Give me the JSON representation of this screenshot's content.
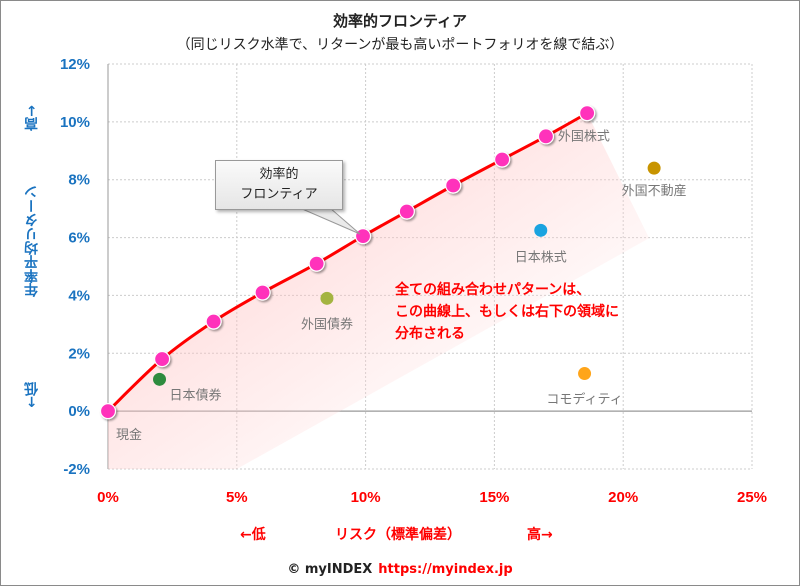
{
  "title": "効率的フロンティア",
  "subtitle": "（同じリスク水準で、リターンが最も高いポートフォリオを線で結ぶ）",
  "chart_data": {
    "type": "scatter",
    "title": "効率的フロンティア",
    "xlabel": "リスク（標準偏差）",
    "ylabel": "年率平均リターン",
    "xlim": [
      0,
      25
    ],
    "ylim": [
      -2,
      12
    ],
    "x_ticks": [
      "0%",
      "5%",
      "10%",
      "15%",
      "20%",
      "25%"
    ],
    "y_ticks": [
      "-2%",
      "0%",
      "2%",
      "4%",
      "6%",
      "8%",
      "10%",
      "12%"
    ],
    "grid": true,
    "frontier": {
      "name": "効率的フロンティア",
      "color": "#ff0000",
      "marker_color": "#ff33bb",
      "x": [
        0,
        2.1,
        4.1,
        6.0,
        8.1,
        9.9,
        11.6,
        13.4,
        15.3,
        17.0,
        18.6
      ],
      "y": [
        0,
        1.8,
        3.1,
        4.1,
        5.1,
        6.05,
        6.9,
        7.8,
        8.7,
        9.5,
        10.3
      ]
    },
    "assets": [
      {
        "name": "現金",
        "x": 0,
        "y": 0,
        "color": "#ff33bb"
      },
      {
        "name": "日本債券",
        "x": 2.0,
        "y": 1.1,
        "color": "#2e8b3e"
      },
      {
        "name": "外国債券",
        "x": 8.5,
        "y": 3.9,
        "color": "#a4b441"
      },
      {
        "name": "日本株式",
        "x": 16.8,
        "y": 6.25,
        "color": "#1aa3e0"
      },
      {
        "name": "外国株式",
        "x": 17.0,
        "y": 9.5,
        "color": "#ff33bb"
      },
      {
        "name": "外国不動産",
        "x": 21.2,
        "y": 8.4,
        "color": "#c89400"
      },
      {
        "name": "コモディティ",
        "x": 18.5,
        "y": 1.3,
        "color": "#ffa51a"
      }
    ]
  },
  "axis": {
    "y_label": "年率平均リターン",
    "y_high": "高→",
    "y_low": "←低",
    "x_low": "←低",
    "x_label": "リスク（標準偏差）",
    "x_high": "高→"
  },
  "callout": [
    "効率的",
    "フロンティア"
  ],
  "note": [
    "全ての組み合わせパターンは、",
    "この曲線上、もしくは右下の領域に",
    "分布される"
  ],
  "footer": {
    "copyright": "© myINDEX",
    "url": "https://myindex.jp"
  }
}
